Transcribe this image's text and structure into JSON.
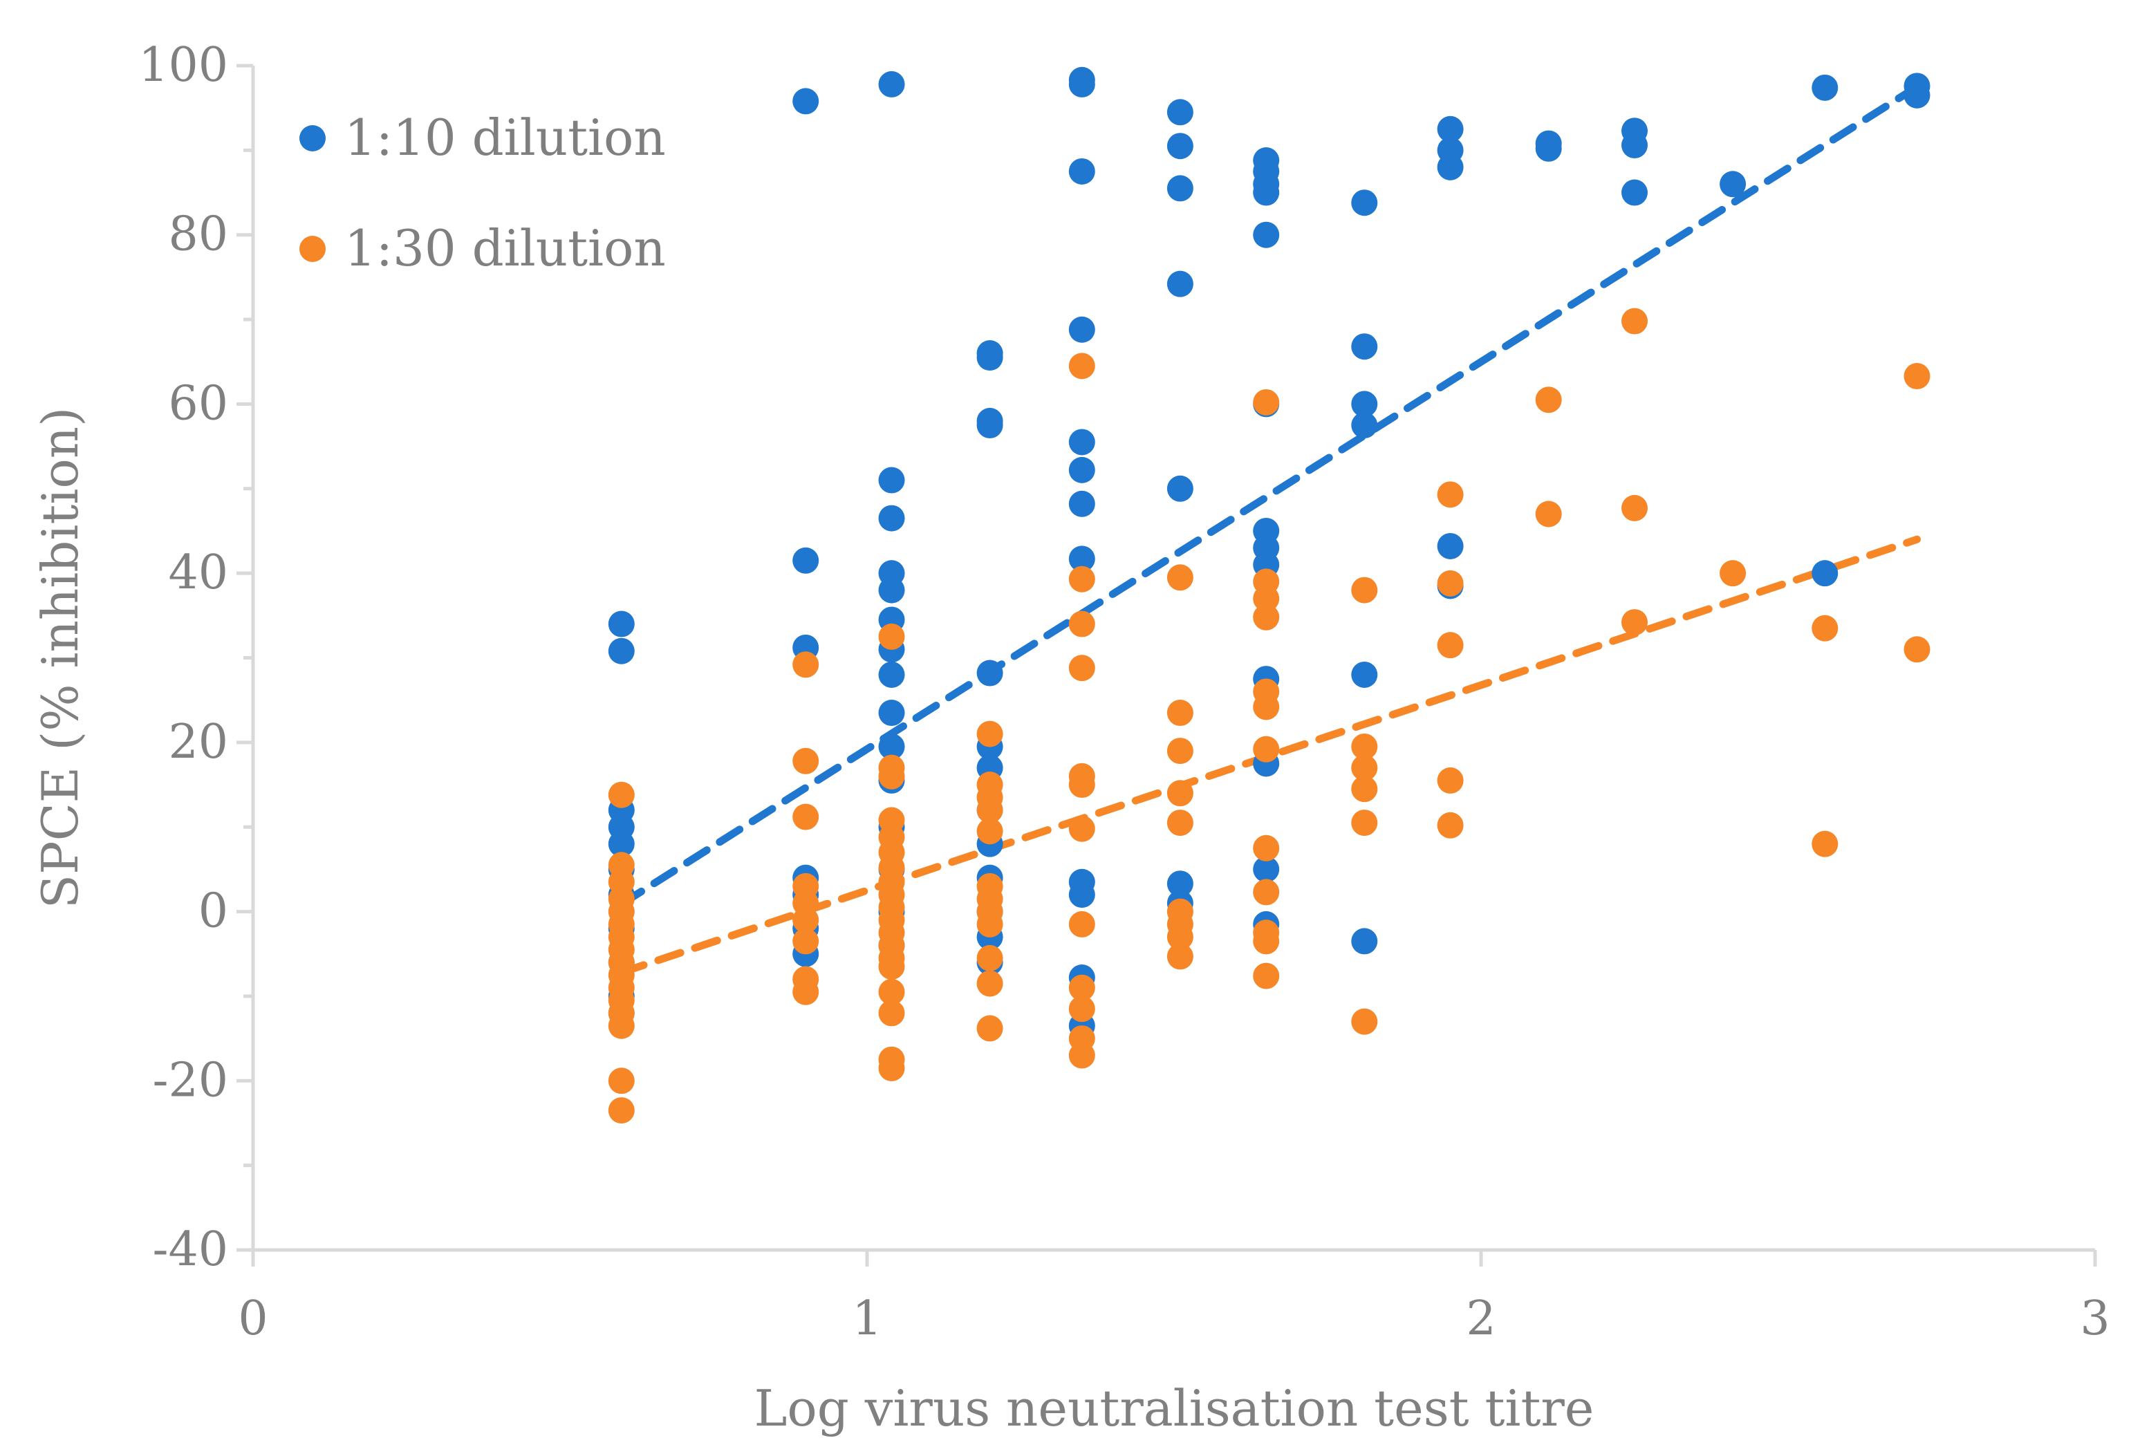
{
  "chart_data": {
    "type": "scatter",
    "title": "",
    "xlabel": "Log virus neutralisation test titre",
    "ylabel": "SPCE (% inhibition)",
    "xlim": [
      0,
      3
    ],
    "ylim": [
      -40,
      100
    ],
    "xticks": [
      0,
      1,
      2,
      3
    ],
    "yticks": [
      -40,
      -20,
      0,
      20,
      40,
      60,
      80,
      100
    ],
    "grid": false,
    "legend_position": "top-left",
    "series": [
      {
        "name": "1:10 dilution",
        "color": "#1F77CF",
        "points": [
          [
            0.6,
            34
          ],
          [
            0.6,
            30.8
          ],
          [
            0.6,
            12
          ],
          [
            0.6,
            10
          ],
          [
            0.6,
            8
          ],
          [
            0.6,
            5
          ],
          [
            0.6,
            2
          ],
          [
            0.6,
            -2
          ],
          [
            0.6,
            -6
          ],
          [
            0.6,
            -10
          ],
          [
            0.6,
            -12
          ],
          [
            0.9,
            95.8
          ],
          [
            0.9,
            41.5
          ],
          [
            0.9,
            31.2
          ],
          [
            0.9,
            4
          ],
          [
            0.9,
            2
          ],
          [
            0.9,
            -2
          ],
          [
            0.9,
            -5
          ],
          [
            1.04,
            97.8
          ],
          [
            1.04,
            51
          ],
          [
            1.04,
            46.5
          ],
          [
            1.04,
            40
          ],
          [
            1.04,
            38
          ],
          [
            1.04,
            34.5
          ],
          [
            1.04,
            31
          ],
          [
            1.04,
            28
          ],
          [
            1.04,
            23.5
          ],
          [
            1.04,
            19.5
          ],
          [
            1.04,
            15.5
          ],
          [
            1.04,
            10
          ],
          [
            1.04,
            5
          ],
          [
            1.04,
            0
          ],
          [
            1.04,
            -4
          ],
          [
            1.2,
            66
          ],
          [
            1.2,
            65.5
          ],
          [
            1.2,
            58
          ],
          [
            1.2,
            57.5
          ],
          [
            1.2,
            28.2
          ],
          [
            1.2,
            19.5
          ],
          [
            1.2,
            17
          ],
          [
            1.2,
            12
          ],
          [
            1.2,
            8
          ],
          [
            1.2,
            4
          ],
          [
            1.2,
            0
          ],
          [
            1.2,
            -3
          ],
          [
            1.2,
            -6
          ],
          [
            1.35,
            98.3
          ],
          [
            1.35,
            97.8
          ],
          [
            1.35,
            87.5
          ],
          [
            1.35,
            68.8
          ],
          [
            1.35,
            55.5
          ],
          [
            1.35,
            52.2
          ],
          [
            1.35,
            48.2
          ],
          [
            1.35,
            41.7
          ],
          [
            1.35,
            3.5
          ],
          [
            1.35,
            2
          ],
          [
            1.35,
            -7.8
          ],
          [
            1.35,
            -13.5
          ],
          [
            1.51,
            94.5
          ],
          [
            1.51,
            90.5
          ],
          [
            1.51,
            85.5
          ],
          [
            1.51,
            74.2
          ],
          [
            1.51,
            50
          ],
          [
            1.51,
            3.3
          ],
          [
            1.51,
            1
          ],
          [
            1.65,
            88.8
          ],
          [
            1.65,
            87.5
          ],
          [
            1.65,
            86
          ],
          [
            1.65,
            85
          ],
          [
            1.65,
            80
          ],
          [
            1.65,
            60
          ],
          [
            1.65,
            45
          ],
          [
            1.65,
            43
          ],
          [
            1.65,
            41
          ],
          [
            1.65,
            27.5
          ],
          [
            1.65,
            17.5
          ],
          [
            1.65,
            5
          ],
          [
            1.65,
            -1.5
          ],
          [
            1.81,
            83.8
          ],
          [
            1.81,
            66.8
          ],
          [
            1.81,
            60
          ],
          [
            1.81,
            57.5
          ],
          [
            1.81,
            28
          ],
          [
            1.81,
            -3.5
          ],
          [
            1.95,
            92.5
          ],
          [
            1.95,
            90
          ],
          [
            1.95,
            88
          ],
          [
            1.95,
            43.2
          ],
          [
            1.95,
            38.5
          ],
          [
            2.11,
            90.8
          ],
          [
            2.11,
            90.2
          ],
          [
            2.25,
            92.3
          ],
          [
            2.25,
            90.6
          ],
          [
            2.25,
            85
          ],
          [
            2.41,
            86
          ],
          [
            2.56,
            97.4
          ],
          [
            2.56,
            40
          ],
          [
            2.71,
            97.6
          ],
          [
            2.71,
            96.5
          ]
        ]
      },
      {
        "name": "1:30 dilution",
        "color": "#F68626",
        "points": [
          [
            0.6,
            13.8
          ],
          [
            0.6,
            5.5
          ],
          [
            0.6,
            3.5
          ],
          [
            0.6,
            1.5
          ],
          [
            0.6,
            0
          ],
          [
            0.6,
            -1.5
          ],
          [
            0.6,
            -3
          ],
          [
            0.6,
            -4.5
          ],
          [
            0.6,
            -6
          ],
          [
            0.6,
            -7.5
          ],
          [
            0.6,
            -9
          ],
          [
            0.6,
            -10.5
          ],
          [
            0.6,
            -12
          ],
          [
            0.6,
            -13.5
          ],
          [
            0.6,
            -20
          ],
          [
            0.6,
            -23.5
          ],
          [
            0.9,
            29.2
          ],
          [
            0.9,
            17.8
          ],
          [
            0.9,
            11.2
          ],
          [
            0.9,
            3
          ],
          [
            0.9,
            1
          ],
          [
            0.9,
            -1
          ],
          [
            0.9,
            -3.5
          ],
          [
            0.9,
            -8
          ],
          [
            0.9,
            -9.5
          ],
          [
            1.04,
            32.5
          ],
          [
            1.04,
            17
          ],
          [
            1.04,
            16
          ],
          [
            1.04,
            10.8
          ],
          [
            1.04,
            8.8
          ],
          [
            1.04,
            7
          ],
          [
            1.04,
            5.2
          ],
          [
            1.04,
            3.5
          ],
          [
            1.04,
            2
          ],
          [
            1.04,
            0.5
          ],
          [
            1.04,
            -1
          ],
          [
            1.04,
            -2.5
          ],
          [
            1.04,
            -4
          ],
          [
            1.04,
            -5.5
          ],
          [
            1.04,
            -6.5
          ],
          [
            1.04,
            -9.5
          ],
          [
            1.04,
            -12
          ],
          [
            1.04,
            -17.5
          ],
          [
            1.04,
            -18.5
          ],
          [
            1.2,
            21
          ],
          [
            1.2,
            15
          ],
          [
            1.2,
            13.5
          ],
          [
            1.2,
            12
          ],
          [
            1.2,
            9.5
          ],
          [
            1.2,
            3
          ],
          [
            1.2,
            1.5
          ],
          [
            1.2,
            0
          ],
          [
            1.2,
            -1.5
          ],
          [
            1.2,
            -5.5
          ],
          [
            1.2,
            -8.5
          ],
          [
            1.2,
            -13.8
          ],
          [
            1.35,
            64.5
          ],
          [
            1.35,
            39.3
          ],
          [
            1.35,
            34
          ],
          [
            1.35,
            28.8
          ],
          [
            1.35,
            16
          ],
          [
            1.35,
            15
          ],
          [
            1.35,
            9.8
          ],
          [
            1.35,
            -1.5
          ],
          [
            1.35,
            -9
          ],
          [
            1.35,
            -11.5
          ],
          [
            1.35,
            -15
          ],
          [
            1.35,
            -17
          ],
          [
            1.51,
            39.5
          ],
          [
            1.51,
            23.5
          ],
          [
            1.51,
            19
          ],
          [
            1.51,
            14
          ],
          [
            1.51,
            10.5
          ],
          [
            1.51,
            0
          ],
          [
            1.51,
            -1.5
          ],
          [
            1.51,
            -3
          ],
          [
            1.51,
            -5.3
          ],
          [
            1.65,
            60.2
          ],
          [
            1.65,
            39
          ],
          [
            1.65,
            37
          ],
          [
            1.65,
            34.8
          ],
          [
            1.65,
            26
          ],
          [
            1.65,
            24.2
          ],
          [
            1.65,
            19.2
          ],
          [
            1.65,
            7.5
          ],
          [
            1.65,
            2.3
          ],
          [
            1.65,
            -2.5
          ],
          [
            1.65,
            -3.5
          ],
          [
            1.65,
            -7.6
          ],
          [
            1.81,
            38
          ],
          [
            1.81,
            19.5
          ],
          [
            1.81,
            17
          ],
          [
            1.81,
            14.5
          ],
          [
            1.81,
            10.5
          ],
          [
            1.81,
            -13
          ],
          [
            1.95,
            49.3
          ],
          [
            1.95,
            38.8
          ],
          [
            1.95,
            31.5
          ],
          [
            1.95,
            15.5
          ],
          [
            1.95,
            10.2
          ],
          [
            2.11,
            60.5
          ],
          [
            2.11,
            47
          ],
          [
            2.25,
            69.8
          ],
          [
            2.25,
            47.7
          ],
          [
            2.25,
            34.2
          ],
          [
            2.41,
            40
          ],
          [
            2.56,
            33.5
          ],
          [
            2.56,
            8
          ],
          [
            2.71,
            63.3
          ],
          [
            2.71,
            31
          ]
        ]
      }
    ],
    "trendlines": [
      {
        "series": "1:10 dilution",
        "color": "#1F77CF",
        "x": [
          0.6,
          2.71
        ],
        "y": [
          0.9,
          97.5
        ]
      },
      {
        "series": "1:30 dilution",
        "color": "#F68626",
        "x": [
          0.6,
          2.71
        ],
        "y": [
          -7.2,
          44
        ]
      }
    ]
  }
}
